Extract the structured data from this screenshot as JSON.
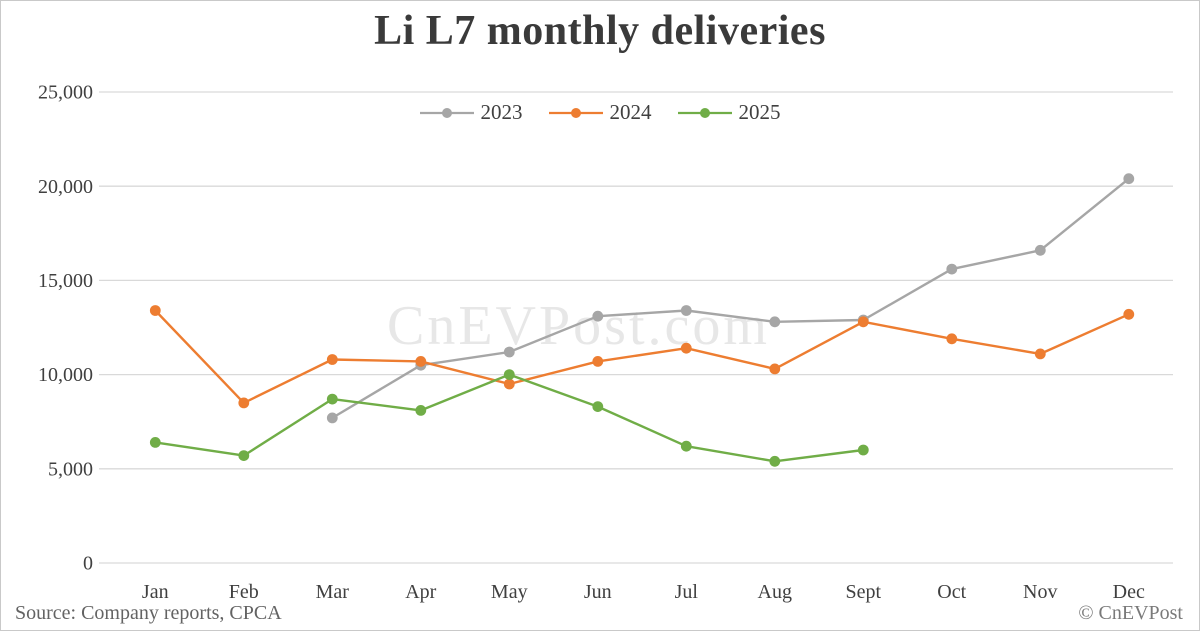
{
  "title": "Li L7 monthly deliveries",
  "watermark": "CnEVPost.com",
  "footer": {
    "source": "Source: Company reports, CPCA",
    "copyright": "© CnEVPost"
  },
  "colors": {
    "gridline": "#d9d9d9",
    "axis_text": "#404040",
    "series_2023": "#a6a6a6",
    "series_2024": "#ed7d31",
    "series_2025": "#70ad47"
  },
  "chart_data": {
    "type": "line",
    "title": "Li L7 monthly deliveries",
    "categories": [
      "Jan",
      "Feb",
      "Mar",
      "Apr",
      "May",
      "Jun",
      "Jul",
      "Aug",
      "Sept",
      "Oct",
      "Nov",
      "Dec"
    ],
    "series": [
      {
        "name": "2023",
        "color": "#a6a6a6",
        "values": [
          null,
          null,
          7700,
          10500,
          11200,
          13100,
          13400,
          12800,
          12900,
          15600,
          16600,
          20400
        ]
      },
      {
        "name": "2024",
        "color": "#ed7d31",
        "values": [
          13400,
          8500,
          10800,
          10700,
          9500,
          10700,
          11400,
          10300,
          12800,
          11900,
          11100,
          13200
        ]
      },
      {
        "name": "2025",
        "color": "#70ad47",
        "values": [
          6400,
          5700,
          8700,
          8100,
          10000,
          8300,
          6200,
          5400,
          6000,
          null,
          null,
          null
        ]
      }
    ],
    "ylim": [
      0,
      25000
    ],
    "ytick_step": 5000,
    "ytick_labels": [
      "0",
      "5,000",
      "10,000",
      "15,000",
      "20,000",
      "25,000"
    ],
    "grid": true,
    "legend_position": "top-center"
  }
}
